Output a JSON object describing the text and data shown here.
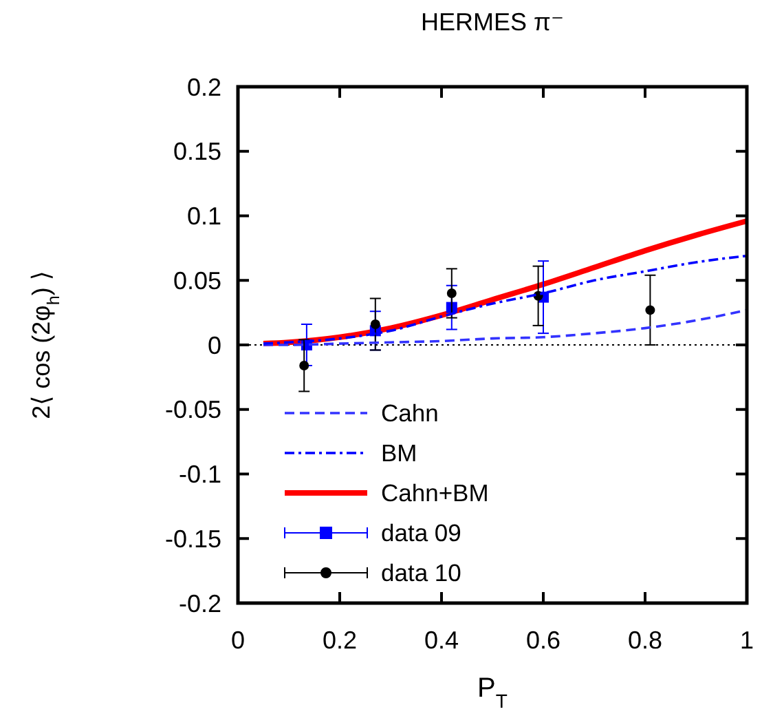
{
  "chart_data": {
    "type": "line",
    "title": "HERMES π⁻",
    "xlabel": "P$_{T}$",
    "ylabel": "2⟨ cos (2φ$_{h}$) ⟩",
    "xlim": [
      0,
      1
    ],
    "ylim": [
      -0.2,
      0.2
    ],
    "xticks": [
      0,
      0.2,
      0.4,
      0.6,
      0.8,
      1
    ],
    "yticks": [
      -0.2,
      -0.15,
      -0.1,
      -0.05,
      0,
      0.05,
      0.1,
      0.15,
      0.2
    ],
    "legend": "bottom left",
    "grid": false,
    "ref_lines": [
      {
        "axis": "y",
        "value": 0,
        "color": "#000000",
        "line_style": "dotted"
      }
    ],
    "series": [
      {
        "name": "Cahn",
        "color": "#3333ff",
        "line_style": "dashed",
        "x": [
          0.05,
          0.1,
          0.2,
          0.3,
          0.4,
          0.5,
          0.6,
          0.7,
          0.8,
          0.9,
          1.0
        ],
        "values": [
          0,
          0,
          0.001,
          0.002,
          0.003,
          0.005,
          0.006,
          0.009,
          0.013,
          0.019,
          0.027
        ]
      },
      {
        "name": "BM",
        "color": "#0000ff",
        "line_style": "dashdot",
        "x": [
          0.05,
          0.1,
          0.2,
          0.3,
          0.4,
          0.5,
          0.6,
          0.7,
          0.8,
          0.9,
          1.0
        ],
        "values": [
          0.001,
          0.002,
          0.005,
          0.011,
          0.022,
          0.032,
          0.04,
          0.05,
          0.057,
          0.064,
          0.069
        ]
      },
      {
        "name": "Cahn+BM",
        "color": "#ff0000",
        "line_style": "solid",
        "x": [
          0.05,
          0.1,
          0.2,
          0.3,
          0.4,
          0.5,
          0.6,
          0.7,
          0.8,
          0.9,
          1.0
        ],
        "values": [
          0.001,
          0.002,
          0.006,
          0.013,
          0.023,
          0.035,
          0.047,
          0.06,
          0.073,
          0.085,
          0.096
        ]
      },
      {
        "name": "data 09",
        "type": "scatter",
        "color": "#0000ff",
        "marker": "square",
        "x": [
          0.135,
          0.27,
          0.42,
          0.6
        ],
        "values": [
          0,
          0.011,
          0.029,
          0.037
        ],
        "errors": [
          0.016,
          0.015,
          0.017,
          0.028
        ]
      },
      {
        "name": "data 10",
        "type": "scatter",
        "color": "#000000",
        "marker": "circle",
        "x": [
          0.13,
          0.27,
          0.42,
          0.59,
          0.81
        ],
        "values": [
          -0.016,
          0.016,
          0.04,
          0.038,
          0.027
        ],
        "errors": [
          0.02,
          0.02,
          0.019,
          0.023,
          0.027
        ]
      }
    ]
  }
}
